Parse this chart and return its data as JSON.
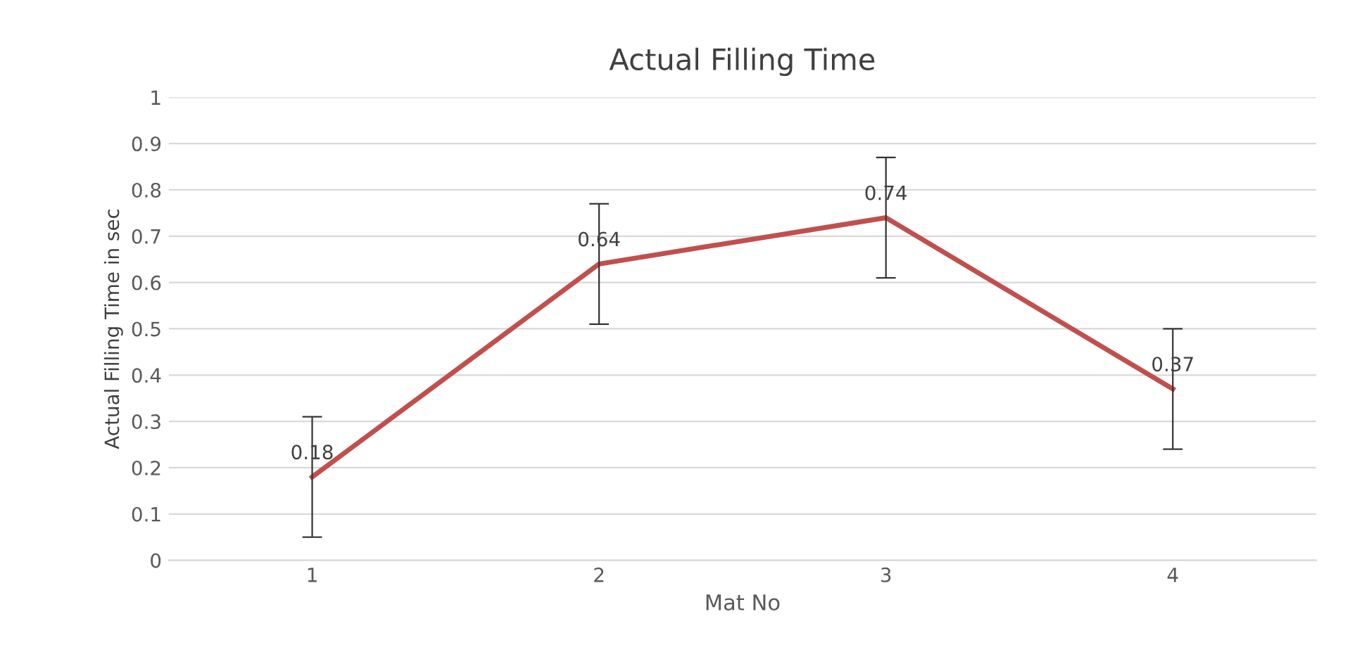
{
  "chart_data": {
    "type": "line",
    "title": "Actual Filling Time",
    "xlabel": "Mat No",
    "ylabel": "Actual Filling Time in sec",
    "categories": [
      "1",
      "2",
      "3",
      "4"
    ],
    "series": [
      {
        "color": "#c0504d",
        "values": [
          0.18,
          0.64,
          0.74,
          0.37
        ],
        "errors": [
          0.13,
          0.13,
          0.13,
          0.13
        ]
      }
    ],
    "ylim": [
      0,
      1
    ],
    "yticks": [
      0,
      0.1,
      0.2,
      0.3,
      0.4,
      0.5,
      0.6,
      0.7,
      0.8,
      0.9,
      1
    ],
    "grid": "y",
    "data_labels": true,
    "marker": "none",
    "line_style": "solid"
  }
}
